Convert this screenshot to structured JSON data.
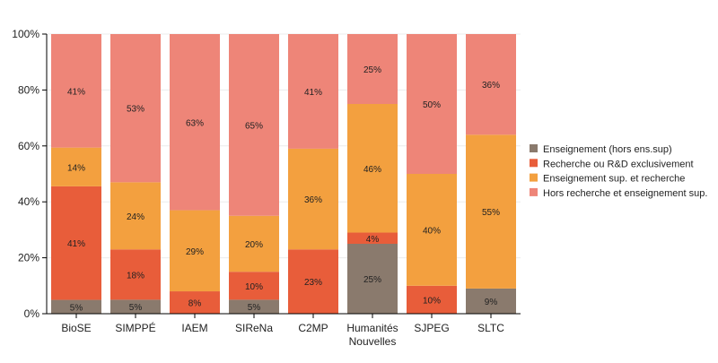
{
  "chart_data": {
    "type": "bar",
    "stacked": true,
    "normalized": true,
    "categories": [
      "BioSE",
      "SIMPPÉ",
      "IAEM",
      "SIReNa",
      "C2MP",
      "Humanités Nouvelles",
      "SJPEG",
      "SLTC"
    ],
    "series": [
      {
        "name": "Enseignement (hors ens.sup)",
        "color": "#8a7a6d",
        "values": [
          5,
          5,
          0,
          5,
          0,
          25,
          0,
          9
        ]
      },
      {
        "name": "Recherche ou R&D exclusivement",
        "color": "#e85d3a",
        "values": [
          41,
          18,
          8,
          10,
          23,
          4,
          10,
          0
        ]
      },
      {
        "name": "Enseignement sup. et recherche",
        "color": "#f3a03f",
        "values": [
          14,
          24,
          29,
          20,
          36,
          46,
          40,
          55
        ]
      },
      {
        "name": "Hors recherche et enseignement sup.",
        "color": "#ee8578",
        "values": [
          41,
          53,
          63,
          65,
          41,
          25,
          50,
          36
        ]
      }
    ],
    "ylim": [
      0,
      100
    ],
    "yticks": [
      "0%",
      "20%",
      "40%",
      "60%",
      "80%",
      "100%"
    ],
    "grid": true,
    "legend": "right"
  }
}
